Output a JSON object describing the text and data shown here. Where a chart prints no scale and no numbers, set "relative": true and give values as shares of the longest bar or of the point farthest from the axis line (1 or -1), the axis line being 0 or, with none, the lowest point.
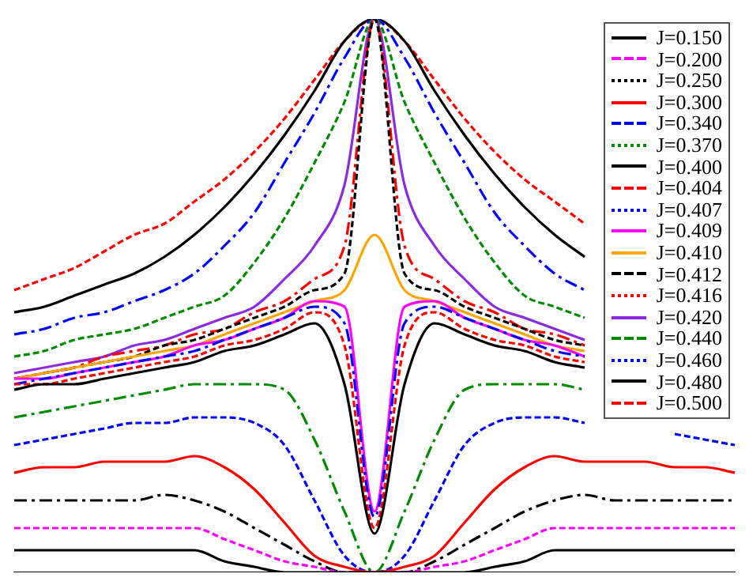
{
  "chart_data": {
    "type": "line",
    "relative": true,
    "categories": [
      null,
      null,
      null,
      null,
      null,
      null,
      null,
      null,
      null,
      null,
      null,
      null,
      null,
      null,
      null,
      null,
      null,
      null,
      null,
      null,
      null,
      null,
      null,
      null,
      null
    ],
    "legend": "top right",
    "grid": false,
    "marker": "none",
    "series": [
      {
        "name": "J=0.150",
        "color": "#000000",
        "line_style": "solid",
        "values": [
          0.04,
          0.04,
          0.04,
          0.04,
          0.04,
          0.04,
          0.04,
          0.02,
          0.01,
          0,
          0,
          0,
          0,
          0,
          0,
          0,
          0.01,
          0.02,
          0.04,
          0.04,
          0.04,
          0.04,
          0.04,
          0.04,
          0.04
        ]
      },
      {
        "name": "J=0.200",
        "color": "#ff00ff",
        "line_style": "dashed",
        "values": [
          0.08,
          0.08,
          0.08,
          0.08,
          0.08,
          0.08,
          0.08,
          0.06,
          0.04,
          0.02,
          0.01,
          0,
          0,
          0,
          0.01,
          0.02,
          0.04,
          0.06,
          0.08,
          0.08,
          0.08,
          0.08,
          0.08,
          0.08,
          0.08
        ]
      },
      {
        "name": "J=0.250",
        "color": "#000000",
        "line_style": "dotted",
        "values": [
          0.13,
          0.13,
          0.13,
          0.13,
          0.13,
          0.14,
          0.13,
          0.11,
          0.08,
          0.05,
          0.02,
          0,
          0,
          0,
          0.02,
          0.05,
          0.08,
          0.11,
          0.13,
          0.14,
          0.13,
          0.13,
          0.13,
          0.13,
          0.13
        ]
      },
      {
        "name": "J=0.300",
        "color": "#ff0000",
        "line_style": "solid",
        "values": [
          0.18,
          0.19,
          0.19,
          0.2,
          0.2,
          0.2,
          0.21,
          0.19,
          0.15,
          0.09,
          0.03,
          0.01,
          0,
          0.01,
          0.03,
          0.09,
          0.15,
          0.19,
          0.21,
          0.2,
          0.2,
          0.2,
          0.19,
          0.19,
          0.18
        ]
      },
      {
        "name": "J=0.340",
        "color": "#0000ff",
        "line_style": "dashed",
        "values": [
          0.23,
          0.24,
          0.25,
          0.26,
          0.27,
          0.27,
          0.28,
          0.28,
          0.27,
          0.23,
          0.13,
          0.03,
          0,
          0.03,
          0.13,
          0.23,
          0.27,
          0.28,
          0.28,
          0.27,
          null,
          null,
          0.25,
          0.24,
          0.23
        ]
      },
      {
        "name": "J=0.370",
        "color": "#008b00",
        "line_style": "dotted",
        "values": [
          0.28,
          0.29,
          0.3,
          0.31,
          0.32,
          0.33,
          0.34,
          0.34,
          0.34,
          0.33,
          0.24,
          0.11,
          0,
          0.11,
          0.24,
          0.33,
          0.34,
          0.34,
          0.34,
          0.33,
          null,
          null,
          null,
          null,
          null
        ]
      },
      {
        "name": "J=0.400",
        "color": "#000000",
        "line_style": "solid",
        "values": [
          0.33,
          0.34,
          0.34,
          0.35,
          0.36,
          0.37,
          0.38,
          0.4,
          0.41,
          0.43,
          0.45,
          0.34,
          0.07,
          0.34,
          0.45,
          0.43,
          0.41,
          0.4,
          0.38,
          0.37,
          null,
          null,
          null,
          null,
          null
        ]
      },
      {
        "name": "J=0.404",
        "color": "#ff0000",
        "line_style": "dashed",
        "values": [
          0.34,
          0.34,
          0.35,
          0.36,
          0.37,
          0.38,
          0.39,
          0.41,
          0.42,
          0.44,
          0.47,
          0.41,
          0.08,
          0.41,
          0.47,
          0.44,
          0.42,
          0.41,
          0.39,
          0.38,
          null,
          null,
          null,
          null,
          null
        ]
      },
      {
        "name": "J=0.407",
        "color": "#0000ff",
        "line_style": "dotted",
        "values": [
          0.34,
          0.35,
          0.36,
          0.37,
          0.38,
          0.39,
          0.4,
          0.42,
          0.44,
          0.46,
          0.48,
          0.45,
          0.1,
          0.45,
          0.48,
          0.46,
          0.44,
          0.42,
          0.4,
          0.39,
          null,
          null,
          null,
          null,
          null
        ]
      },
      {
        "name": "J=0.409",
        "color": "#ff00ff",
        "line_style": "solid",
        "values": [
          0.35,
          0.35,
          0.36,
          0.37,
          0.38,
          0.39,
          0.41,
          0.42,
          0.44,
          0.46,
          0.49,
          0.48,
          0.11,
          0.48,
          0.49,
          0.46,
          0.44,
          0.42,
          0.41,
          0.39,
          null,
          null,
          null,
          null,
          null
        ]
      },
      {
        "name": "J=0.410",
        "color": "#ffa500",
        "line_style": "solid",
        "values": [
          0.35,
          0.36,
          0.37,
          0.38,
          0.39,
          0.4,
          0.41,
          0.43,
          0.45,
          0.47,
          0.49,
          0.51,
          0.61,
          0.51,
          0.49,
          0.47,
          0.45,
          0.43,
          0.41,
          0.4,
          null,
          null,
          null,
          null,
          null
        ]
      },
      {
        "name": "J=0.412",
        "color": "#000000",
        "line_style": "dashed",
        "values": [
          0.35,
          0.36,
          0.37,
          0.38,
          0.39,
          0.41,
          0.42,
          0.44,
          0.46,
          0.48,
          0.51,
          0.54,
          1,
          0.54,
          0.51,
          0.48,
          0.46,
          0.44,
          0.42,
          0.41,
          null,
          null,
          null,
          null,
          null
        ]
      },
      {
        "name": "J=0.416",
        "color": "#ff0000",
        "line_style": "dotted",
        "values": [
          0.35,
          0.36,
          0.37,
          0.39,
          0.4,
          0.41,
          0.43,
          0.44,
          0.47,
          0.49,
          0.53,
          0.59,
          1,
          0.59,
          0.53,
          0.49,
          0.47,
          0.44,
          0.43,
          0.41,
          null,
          null,
          null,
          null,
          null
        ]
      },
      {
        "name": "J=0.420",
        "color": "#8a2be2",
        "line_style": "solid",
        "values": [
          0.36,
          0.37,
          0.38,
          0.39,
          0.41,
          0.42,
          0.44,
          0.46,
          0.48,
          0.53,
          0.59,
          0.7,
          1,
          0.7,
          0.59,
          0.53,
          0.48,
          0.46,
          0.44,
          0.42,
          null,
          null,
          null,
          null,
          null
        ]
      },
      {
        "name": "J=0.440",
        "color": "#008b00",
        "line_style": "dashed",
        "values": [
          0.39,
          0.4,
          0.42,
          0.43,
          0.44,
          0.46,
          0.48,
          0.5,
          0.56,
          0.64,
          0.74,
          0.85,
          1,
          0.85,
          0.74,
          0.64,
          0.56,
          0.5,
          0.48,
          0.46,
          null,
          null,
          null,
          null,
          null
        ]
      },
      {
        "name": "J=0.460",
        "color": "#0000ff",
        "line_style": "dotted",
        "values": [
          0.43,
          0.44,
          0.46,
          0.47,
          0.49,
          0.51,
          0.54,
          0.59,
          0.65,
          0.74,
          0.83,
          0.93,
          1,
          0.93,
          0.83,
          0.74,
          0.65,
          0.59,
          0.54,
          0.51,
          null,
          null,
          null,
          null,
          null
        ]
      },
      {
        "name": "J=0.480",
        "color": "#000000",
        "line_style": "solid",
        "values": [
          0.47,
          0.48,
          0.5,
          0.52,
          0.54,
          0.57,
          0.61,
          0.66,
          0.72,
          0.79,
          0.87,
          0.96,
          1,
          0.96,
          0.87,
          0.79,
          0.72,
          0.66,
          0.61,
          0.57,
          null,
          null,
          null,
          null,
          null
        ]
      },
      {
        "name": "J=0.500",
        "color": "#ff0000",
        "line_style": "dashed",
        "values": [
          0.51,
          0.53,
          0.55,
          0.58,
          0.61,
          0.63,
          0.67,
          0.71,
          0.76,
          0.82,
          0.89,
          0.96,
          1,
          0.96,
          0.89,
          0.82,
          0.76,
          0.71,
          0.67,
          0.63,
          null,
          null,
          null,
          null,
          null
        ]
      }
    ]
  }
}
